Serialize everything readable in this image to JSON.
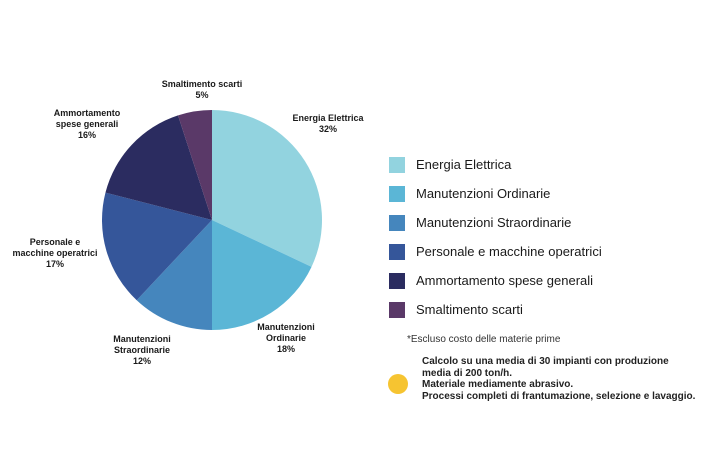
{
  "chart_data": {
    "type": "pie",
    "title": "",
    "slices": [
      {
        "label_lines": [
          "Energia Elettrica"
        ],
        "value_text": "32%",
        "value": 32,
        "color": "#92d3df"
      },
      {
        "label_lines": [
          "Manutenzioni",
          "Ordinarie"
        ],
        "value_text": "18%",
        "value": 18,
        "color": "#5bb6d6"
      },
      {
        "label_lines": [
          "Manutenzioni",
          "Straordinarie"
        ],
        "value_text": "12%",
        "value": 12,
        "color": "#4586bd"
      },
      {
        "label_lines": [
          "Personale e",
          "macchine operatrici"
        ],
        "value_text": "17%",
        "value": 17,
        "color": "#35569a"
      },
      {
        "label_lines": [
          "Ammortamento",
          "spese generali"
        ],
        "value_text": "16%",
        "value": 16,
        "color": "#2b2c60"
      },
      {
        "label_lines": [
          "Smaltimento scarti"
        ],
        "value_text": "5%",
        "value": 5,
        "color": "#5a3968"
      }
    ],
    "legend": {
      "placement": "right",
      "items": [
        {
          "label": "Energia Elettrica",
          "color": "#92d3df"
        },
        {
          "label": "Manutenzioni Ordinarie",
          "color": "#5bb6d6"
        },
        {
          "label": "Manutenzioni Straordinarie",
          "color": "#4586bd"
        },
        {
          "label": "Personale e macchine operatrici",
          "color": "#35569a"
        },
        {
          "label": "Ammortamento spese generali",
          "color": "#2b2c60"
        },
        {
          "label": "Smaltimento scarti",
          "color": "#5a3968"
        }
      ]
    }
  },
  "footnote": "*Escluso costo delle materie prime",
  "note": {
    "dot_color": "#f6c431",
    "lines": [
      "Calcolo su una media di 30 impianti con produzione",
      "media di 200 ton/h.",
      "Materiale mediamente abrasivo.",
      "Processi completi di frantumazione, selezione e lavaggio."
    ]
  }
}
